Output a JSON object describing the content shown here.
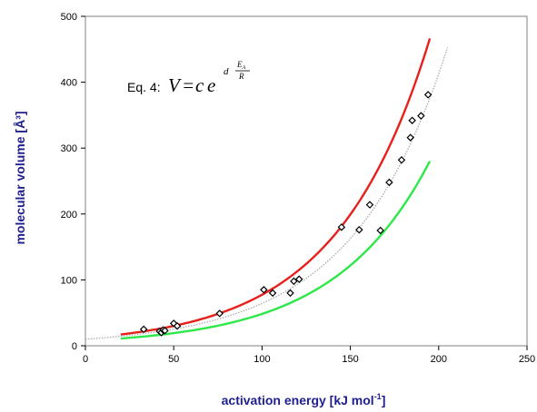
{
  "chart_data": {
    "type": "scatter",
    "xlabel": "activation energy [kJ mol",
    "xlabel_sup": "-1",
    "xlabel_end": "]",
    "ylabel": "molecular volume [Å³]",
    "xlim": [
      0,
      250
    ],
    "ylim": [
      0,
      500
    ],
    "x_ticks": [
      0,
      50,
      100,
      150,
      200,
      250
    ],
    "y_ticks": [
      0,
      100,
      200,
      300,
      400,
      500
    ],
    "grid": false,
    "annotation": {
      "prefix": "Eq. 4:",
      "V": "V",
      "eq": "=",
      "c": "c",
      "e": "e",
      "d": "d",
      "num": "E",
      "num_sub": "A",
      "den": "R"
    },
    "points": [
      {
        "x": 33,
        "y": 25
      },
      {
        "x": 42,
        "y": 22
      },
      {
        "x": 43,
        "y": 20
      },
      {
        "x": 44,
        "y": 24
      },
      {
        "x": 45,
        "y": 23
      },
      {
        "x": 50,
        "y": 34
      },
      {
        "x": 52,
        "y": 30
      },
      {
        "x": 76,
        "y": 49
      },
      {
        "x": 101,
        "y": 85
      },
      {
        "x": 106,
        "y": 80
      },
      {
        "x": 116,
        "y": 80
      },
      {
        "x": 118,
        "y": 98
      },
      {
        "x": 121,
        "y": 101
      },
      {
        "x": 145,
        "y": 180
      },
      {
        "x": 155,
        "y": 176
      },
      {
        "x": 161,
        "y": 214
      },
      {
        "x": 167,
        "y": 175
      },
      {
        "x": 172,
        "y": 248
      },
      {
        "x": 179,
        "y": 282
      },
      {
        "x": 184,
        "y": 316
      },
      {
        "x": 185,
        "y": 342
      },
      {
        "x": 190,
        "y": 349
      },
      {
        "x": 194,
        "y": 381
      }
    ],
    "curves": [
      {
        "color": "#e8201c",
        "style": "solid",
        "x_range": [
          20,
          195
        ],
        "a": 11.7,
        "k": 0.0189
      },
      {
        "color": "#aaaaaa",
        "style": "dotted",
        "x_range": [
          0,
          205
        ],
        "a": 10.0,
        "k": 0.0186
      },
      {
        "color": "#2ee84a",
        "style": "solid",
        "x_range": [
          20,
          195
        ],
        "a": 7.6,
        "k": 0.0185
      }
    ]
  }
}
